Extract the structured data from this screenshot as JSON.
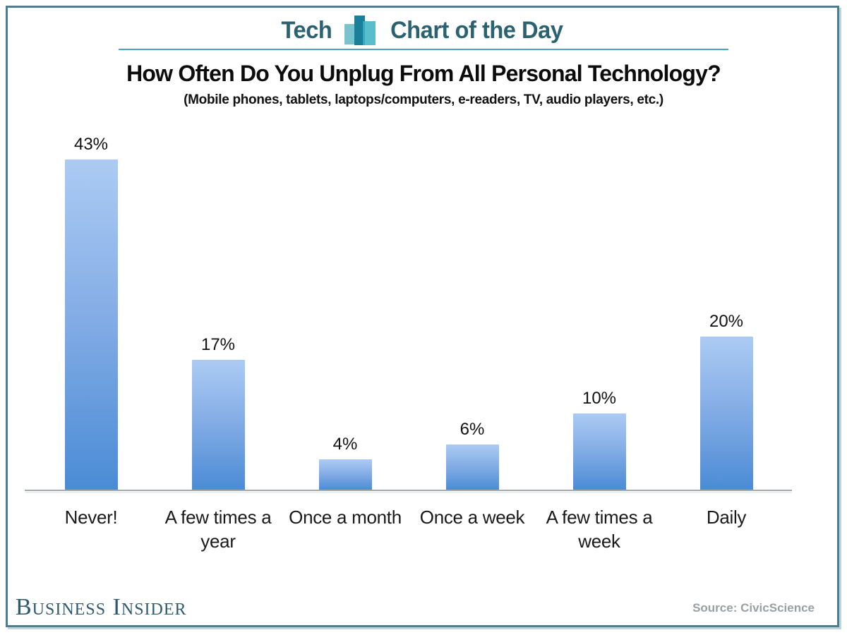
{
  "header": {
    "brand_left": "Tech",
    "brand_right": "Chart of the Day",
    "logo_icon": "bar-chart-icon"
  },
  "chart_data": {
    "type": "bar",
    "title": "How Often Do You Unplug From All Personal Technology?",
    "subtitle": "(Mobile phones, tablets, laptops/computers, e-readers, TV, audio players, etc.)",
    "categories": [
      "Never!",
      "A few times a year",
      "Once a month",
      "Once a week",
      "A few times a week",
      "Daily"
    ],
    "values": [
      43,
      17,
      4,
      6,
      10,
      20
    ],
    "value_labels": [
      "43%",
      "17%",
      "4%",
      "6%",
      "10%",
      "20%"
    ],
    "xlabel": "",
    "ylabel": "",
    "ylim": [
      0,
      45
    ],
    "grid": false,
    "legend": false,
    "bar_color_top": "#abcbf3",
    "bar_color_bottom": "#4a8bd5"
  },
  "footer": {
    "brand": "Business Insider",
    "source": "Source: CivicScience"
  },
  "colors": {
    "accent_teal": "#2b6272",
    "frame_border": "#4f7d90",
    "separator": "#4da3b6",
    "axis": "#a8a8a8",
    "logo_light": "#79c4cc",
    "logo_dark": "#1a7f98",
    "logo_mid": "#3cb2c6"
  }
}
